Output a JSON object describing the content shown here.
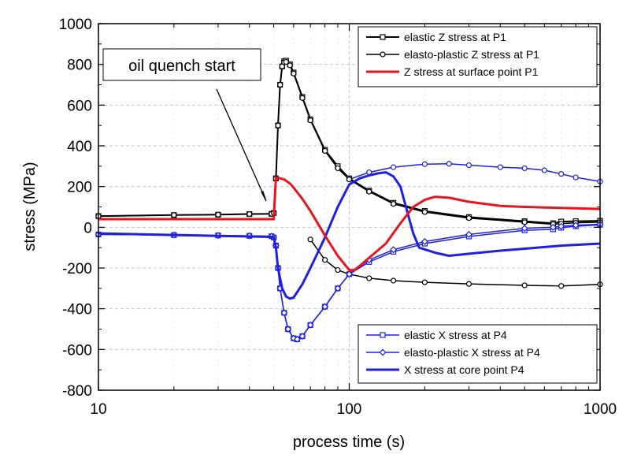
{
  "chart_data": {
    "type": "line",
    "title": "",
    "xlabel": "process time (s)",
    "ylabel": "stress (MPa)",
    "xscale": "log",
    "xlim": [
      10,
      1000
    ],
    "ylim": [
      -800,
      1000
    ],
    "x_ticks": [
      10,
      100,
      1000
    ],
    "x_tick_labels": [
      "10",
      "100",
      "1000"
    ],
    "y_ticks": [
      -800,
      -600,
      -400,
      -200,
      0,
      200,
      400,
      600,
      800,
      1000
    ],
    "y_tick_labels": [
      "-800",
      "-600",
      "-400",
      "-200",
      "0",
      "200",
      "400",
      "600",
      "800",
      "1000"
    ],
    "grid": true,
    "annotation": {
      "text": "oil quench start",
      "points_to": [
        50,
        130
      ]
    },
    "legends": [
      {
        "placement": "top-right",
        "entries": [
          0,
          1,
          2
        ]
      },
      {
        "placement": "bottom-right",
        "entries": [
          3,
          4,
          5
        ]
      }
    ],
    "series": [
      {
        "name": "elastic Z stress at P1",
        "color": "#000000",
        "marker": "square",
        "width": 2,
        "points": [
          [
            10,
            55
          ],
          [
            20,
            60
          ],
          [
            30,
            62
          ],
          [
            40,
            65
          ],
          [
            49,
            66
          ],
          [
            50,
            70
          ],
          [
            51,
            240
          ],
          [
            52,
            500
          ],
          [
            53,
            700
          ],
          [
            54,
            790
          ],
          [
            55,
            815
          ],
          [
            56,
            818
          ],
          [
            58,
            800
          ],
          [
            60,
            760
          ],
          [
            65,
            640
          ],
          [
            70,
            530
          ],
          [
            80,
            380
          ],
          [
            90,
            300
          ],
          [
            100,
            240
          ],
          [
            120,
            180
          ],
          [
            150,
            120
          ],
          [
            200,
            80
          ],
          [
            300,
            50
          ],
          [
            500,
            30
          ],
          [
            650,
            20
          ],
          [
            700,
            28
          ],
          [
            800,
            30
          ],
          [
            1000,
            32
          ]
        ]
      },
      {
        "name": "elasto-plastic Z stress at P1",
        "color": "#000000",
        "marker": "circle",
        "width": 1.5,
        "points": [
          [
            10,
            55
          ],
          [
            20,
            60
          ],
          [
            30,
            62
          ],
          [
            40,
            65
          ],
          [
            49,
            66
          ],
          [
            50,
            70
          ],
          [
            51,
            240
          ],
          [
            52,
            500
          ],
          [
            53,
            700
          ],
          [
            54,
            790
          ],
          [
            55,
            810
          ],
          [
            56,
            812
          ],
          [
            58,
            795
          ],
          [
            60,
            755
          ],
          [
            65,
            635
          ],
          [
            70,
            525
          ],
          [
            80,
            375
          ],
          [
            90,
            290
          ],
          [
            100,
            235
          ],
          [
            120,
            175
          ],
          [
            150,
            115
          ],
          [
            200,
            75
          ],
          [
            300,
            45
          ],
          [
            500,
            25
          ],
          [
            650,
            15
          ],
          [
            700,
            18
          ],
          [
            800,
            22
          ],
          [
            1000,
            25
          ]
        ]
      },
      {
        "name": "Z stress at surface point P1",
        "color": "#e8141e",
        "marker": "none",
        "width": 3,
        "points": [
          [
            10,
            40
          ],
          [
            20,
            40
          ],
          [
            30,
            40
          ],
          [
            40,
            40
          ],
          [
            49,
            40
          ],
          [
            50,
            40
          ],
          [
            51,
            245
          ],
          [
            53,
            240
          ],
          [
            55,
            235
          ],
          [
            58,
            215
          ],
          [
            60,
            195
          ],
          [
            65,
            140
          ],
          [
            70,
            80
          ],
          [
            80,
            -40
          ],
          [
            90,
            -140
          ],
          [
            100,
            -210
          ],
          [
            105,
            -210
          ],
          [
            110,
            -190
          ],
          [
            120,
            -150
          ],
          [
            140,
            -80
          ],
          [
            160,
            20
          ],
          [
            180,
            100
          ],
          [
            200,
            135
          ],
          [
            220,
            150
          ],
          [
            250,
            145
          ],
          [
            300,
            125
          ],
          [
            400,
            105
          ],
          [
            500,
            100
          ],
          [
            700,
            95
          ],
          [
            1000,
            90
          ]
        ]
      },
      {
        "name": "elastic X stress at P4",
        "color": "#1e1ee6",
        "marker": "square",
        "width": 1.5,
        "points": [
          [
            10,
            -35
          ],
          [
            20,
            -38
          ],
          [
            30,
            -40
          ],
          [
            40,
            -42
          ],
          [
            49,
            -44
          ],
          [
            50,
            -50
          ],
          [
            51,
            -90
          ],
          [
            52,
            -200
          ],
          [
            53,
            -300
          ],
          [
            55,
            -420
          ],
          [
            57,
            -500
          ],
          [
            60,
            -545
          ],
          [
            62,
            -550
          ],
          [
            65,
            -535
          ],
          [
            70,
            -480
          ],
          [
            80,
            -390
          ],
          [
            90,
            -300
          ],
          [
            100,
            -230
          ],
          [
            120,
            -170
          ],
          [
            150,
            -120
          ],
          [
            200,
            -80
          ],
          [
            300,
            -45
          ],
          [
            500,
            -15
          ],
          [
            650,
            -10
          ],
          [
            700,
            -2
          ],
          [
            800,
            5
          ],
          [
            1000,
            12
          ]
        ]
      },
      {
        "name": "elasto-plastic X stress at P4",
        "color": "#1e1ee6",
        "marker": "diamond",
        "width": 1.5,
        "points": [
          [
            10,
            -35
          ],
          [
            20,
            -38
          ],
          [
            30,
            -40
          ],
          [
            40,
            -42
          ],
          [
            49,
            -44
          ],
          [
            50,
            -50
          ],
          [
            51,
            -90
          ],
          [
            52,
            -200
          ],
          [
            53,
            -300
          ],
          [
            55,
            -420
          ],
          [
            57,
            -500
          ],
          [
            60,
            -545
          ],
          [
            62,
            -550
          ],
          [
            65,
            -535
          ],
          [
            70,
            -480
          ],
          [
            80,
            -390
          ],
          [
            90,
            -300
          ],
          [
            100,
            -230
          ],
          [
            120,
            -160
          ],
          [
            150,
            -110
          ],
          [
            200,
            -70
          ],
          [
            300,
            -35
          ],
          [
            500,
            -5
          ],
          [
            650,
            0
          ],
          [
            700,
            5
          ],
          [
            800,
            10
          ],
          [
            1000,
            15
          ]
        ]
      },
      {
        "name": "X stress at core point P4",
        "color": "#1e1ee6",
        "marker": "none",
        "width": 3,
        "points": [
          [
            10,
            -30
          ],
          [
            20,
            -38
          ],
          [
            30,
            -42
          ],
          [
            40,
            -45
          ],
          [
            49,
            -47
          ],
          [
            50,
            -48
          ],
          [
            51,
            -100
          ],
          [
            52,
            -200
          ],
          [
            54,
            -300
          ],
          [
            56,
            -340
          ],
          [
            58,
            -350
          ],
          [
            60,
            -345
          ],
          [
            65,
            -280
          ],
          [
            70,
            -200
          ],
          [
            80,
            -50
          ],
          [
            90,
            100
          ],
          [
            100,
            210
          ],
          [
            110,
            240
          ],
          [
            120,
            255
          ],
          [
            130,
            265
          ],
          [
            140,
            270
          ],
          [
            150,
            250
          ],
          [
            160,
            200
          ],
          [
            170,
            80
          ],
          [
            180,
            -30
          ],
          [
            190,
            -100
          ],
          [
            220,
            -125
          ],
          [
            250,
            -140
          ],
          [
            300,
            -130
          ],
          [
            400,
            -115
          ],
          [
            500,
            -105
          ],
          [
            700,
            -90
          ],
          [
            1000,
            -80
          ]
        ]
      },
      {
        "name": "",
        "color": "#1e1ee6",
        "marker": "circle",
        "width": 1.5,
        "points": [
          [
            100,
            235
          ],
          [
            120,
            270
          ],
          [
            150,
            295
          ],
          [
            200,
            310
          ],
          [
            250,
            312
          ],
          [
            300,
            305
          ],
          [
            400,
            295
          ],
          [
            500,
            290
          ],
          [
            600,
            280
          ],
          [
            700,
            262
          ],
          [
            800,
            245
          ],
          [
            1000,
            225
          ]
        ]
      },
      {
        "name": "",
        "color": "#000000",
        "marker": "circle",
        "width": 1.5,
        "points": [
          [
            70,
            -60
          ],
          [
            80,
            -160
          ],
          [
            90,
            -210
          ],
          [
            100,
            -230
          ],
          [
            120,
            -250
          ],
          [
            150,
            -262
          ],
          [
            200,
            -270
          ],
          [
            300,
            -278
          ],
          [
            500,
            -285
          ],
          [
            700,
            -288
          ],
          [
            1000,
            -280
          ]
        ]
      }
    ]
  }
}
